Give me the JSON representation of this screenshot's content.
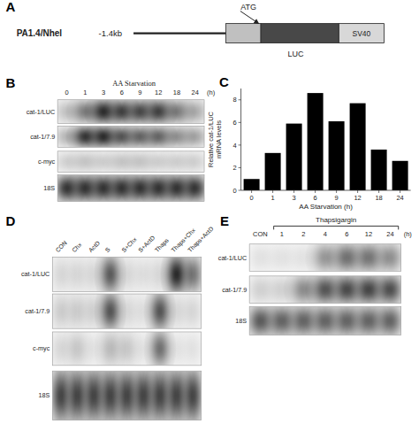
{
  "chart_data": [
    {
      "type": "diagram",
      "panel_label": "A",
      "annotations": [
        "PA1.4/Nhel",
        "-1.4kb",
        "ATG",
        "LUC",
        "SV40"
      ]
    },
    {
      "type": "blot",
      "panel_label": "B",
      "title": "AA Starvation",
      "categories": [
        "0",
        "1",
        "3",
        "6",
        "9",
        "12",
        "18",
        "24"
      ],
      "xlabel": "(h)",
      "rows": [
        "cat-1/LUC",
        "cat-1/7.9",
        "c-myc",
        "18S"
      ],
      "cells": [
        [
          0.25,
          0.55,
          0.92,
          0.82,
          0.78,
          0.82,
          0.55,
          0.35
        ],
        [
          0.3,
          0.88,
          0.92,
          0.72,
          0.65,
          0.65,
          0.45,
          0.38
        ],
        [
          0.18,
          0.22,
          0.18,
          0.22,
          0.22,
          0.18,
          0.18,
          0.18
        ],
        [
          0.88,
          0.88,
          0.88,
          0.88,
          0.88,
          0.88,
          0.88,
          0.88
        ]
      ]
    },
    {
      "type": "bar",
      "panel_label": "C",
      "categories": [
        "0",
        "1",
        "3",
        "6",
        "9",
        "12",
        "18",
        "24"
      ],
      "values": [
        1.0,
        3.3,
        5.9,
        8.6,
        6.1,
        7.7,
        3.6,
        2.6
      ],
      "xlabel": "AA Starvation (h)",
      "ylabel": "Relative cat-1/LUC\nmRNA levels",
      "color": "#000000",
      "ylim": [
        0,
        9
      ],
      "yticks": [
        0,
        2,
        4,
        6,
        8
      ]
    },
    {
      "type": "blot",
      "panel_label": "D",
      "categories": [
        "CON",
        "Chx",
        "ActD",
        "S",
        "S+Chx",
        "S+ActD",
        "Thaps",
        "Thaps+Chx",
        "Thaps+ActD"
      ],
      "rows": [
        "cat-1/LUC",
        "cat-1/7.9",
        "c-myc",
        "18S"
      ],
      "cells": [
        [
          0.15,
          0.15,
          0.15,
          0.72,
          0.15,
          0.12,
          0.15,
          0.95,
          0.6
        ],
        [
          0.2,
          0.2,
          0.18,
          0.75,
          0.15,
          0.12,
          0.75,
          0.15,
          0.15
        ],
        [
          0.15,
          0.22,
          0.1,
          0.28,
          0.22,
          0.1,
          0.62,
          0.1,
          0.1
        ],
        [
          0.82,
          0.82,
          0.82,
          0.82,
          0.82,
          0.82,
          0.82,
          0.82,
          0.82
        ]
      ]
    },
    {
      "type": "blot",
      "panel_label": "E",
      "title": "Thapsigargin",
      "categories": [
        "CON",
        "1",
        "2",
        "4",
        "6",
        "12",
        "24"
      ],
      "xlabel": "(h)",
      "rows": [
        "cat-1/LUC",
        "cat-1/7.9",
        "18S"
      ],
      "cells": [
        [
          0.1,
          0.1,
          0.1,
          0.45,
          0.62,
          0.6,
          0.48
        ],
        [
          0.18,
          0.18,
          0.5,
          0.75,
          0.8,
          0.82,
          0.78
        ],
        [
          0.72,
          0.68,
          0.68,
          0.68,
          0.68,
          0.68,
          0.68
        ]
      ]
    }
  ]
}
